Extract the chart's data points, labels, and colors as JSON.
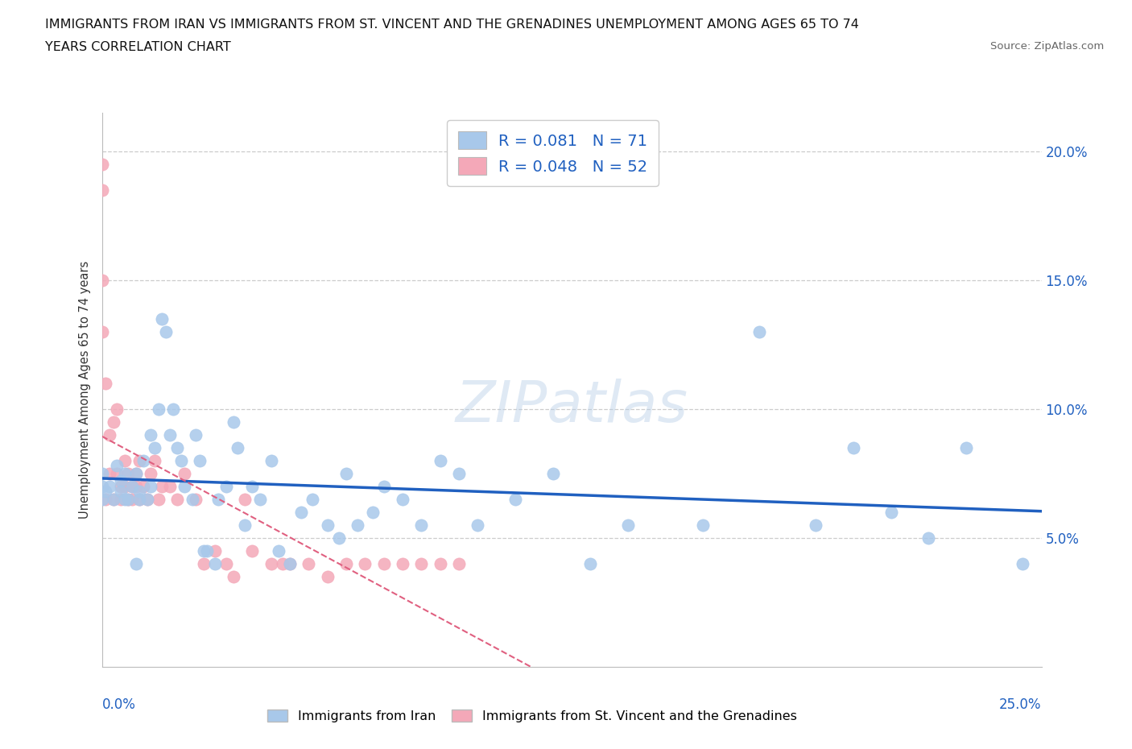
{
  "title_line1": "IMMIGRANTS FROM IRAN VS IMMIGRANTS FROM ST. VINCENT AND THE GRENADINES UNEMPLOYMENT AMONG AGES 65 TO 74",
  "title_line2": "YEARS CORRELATION CHART",
  "source": "Source: ZipAtlas.com",
  "ylabel": "Unemployment Among Ages 65 to 74 years",
  "xmin": 0.0,
  "xmax": 0.25,
  "ymin": 0.0,
  "ymax": 0.215,
  "iran_R": "0.081",
  "iran_N": "71",
  "svg_R": "0.048",
  "svg_N": "52",
  "iran_color": "#a8c8ea",
  "svg_color": "#f4a8b8",
  "iran_trend_color": "#2060c0",
  "svg_trend_color": "#e06080",
  "watermark": "ZIPatlas",
  "iran_scatter_x": [
    0.0,
    0.0,
    0.0,
    0.001,
    0.002,
    0.003,
    0.004,
    0.005,
    0.005,
    0.006,
    0.006,
    0.007,
    0.008,
    0.009,
    0.009,
    0.01,
    0.01,
    0.011,
    0.012,
    0.013,
    0.013,
    0.014,
    0.015,
    0.016,
    0.017,
    0.018,
    0.019,
    0.02,
    0.021,
    0.022,
    0.024,
    0.025,
    0.026,
    0.027,
    0.028,
    0.03,
    0.031,
    0.033,
    0.035,
    0.036,
    0.038,
    0.04,
    0.042,
    0.045,
    0.047,
    0.05,
    0.053,
    0.056,
    0.06,
    0.063,
    0.065,
    0.068,
    0.072,
    0.075,
    0.08,
    0.085,
    0.09,
    0.095,
    0.1,
    0.11,
    0.12,
    0.13,
    0.14,
    0.16,
    0.175,
    0.19,
    0.21,
    0.22,
    0.23,
    0.245,
    0.2
  ],
  "iran_scatter_y": [
    0.065,
    0.07,
    0.075,
    0.068,
    0.07,
    0.065,
    0.078,
    0.072,
    0.068,
    0.075,
    0.065,
    0.065,
    0.07,
    0.075,
    0.04,
    0.068,
    0.065,
    0.08,
    0.065,
    0.07,
    0.09,
    0.085,
    0.1,
    0.135,
    0.13,
    0.09,
    0.1,
    0.085,
    0.08,
    0.07,
    0.065,
    0.09,
    0.08,
    0.045,
    0.045,
    0.04,
    0.065,
    0.07,
    0.095,
    0.085,
    0.055,
    0.07,
    0.065,
    0.08,
    0.045,
    0.04,
    0.06,
    0.065,
    0.055,
    0.05,
    0.075,
    0.055,
    0.06,
    0.07,
    0.065,
    0.055,
    0.08,
    0.075,
    0.055,
    0.065,
    0.075,
    0.04,
    0.055,
    0.055,
    0.13,
    0.055,
    0.06,
    0.05,
    0.085,
    0.04,
    0.085
  ],
  "svg_scatter_x": [
    0.0,
    0.0,
    0.0,
    0.0,
    0.001,
    0.001,
    0.002,
    0.002,
    0.003,
    0.003,
    0.004,
    0.004,
    0.005,
    0.005,
    0.006,
    0.006,
    0.007,
    0.007,
    0.008,
    0.008,
    0.009,
    0.009,
    0.01,
    0.01,
    0.011,
    0.012,
    0.013,
    0.014,
    0.015,
    0.016,
    0.018,
    0.02,
    0.022,
    0.025,
    0.027,
    0.03,
    0.033,
    0.035,
    0.038,
    0.04,
    0.045,
    0.048,
    0.05,
    0.055,
    0.06,
    0.065,
    0.07,
    0.075,
    0.08,
    0.085,
    0.09,
    0.095
  ],
  "svg_scatter_y": [
    0.195,
    0.185,
    0.15,
    0.13,
    0.065,
    0.11,
    0.075,
    0.09,
    0.065,
    0.095,
    0.1,
    0.075,
    0.065,
    0.07,
    0.08,
    0.07,
    0.065,
    0.075,
    0.07,
    0.065,
    0.07,
    0.075,
    0.065,
    0.08,
    0.07,
    0.065,
    0.075,
    0.08,
    0.065,
    0.07,
    0.07,
    0.065,
    0.075,
    0.065,
    0.04,
    0.045,
    0.04,
    0.035,
    0.065,
    0.045,
    0.04,
    0.04,
    0.04,
    0.04,
    0.035,
    0.04,
    0.04,
    0.04,
    0.04,
    0.04,
    0.04,
    0.04
  ]
}
